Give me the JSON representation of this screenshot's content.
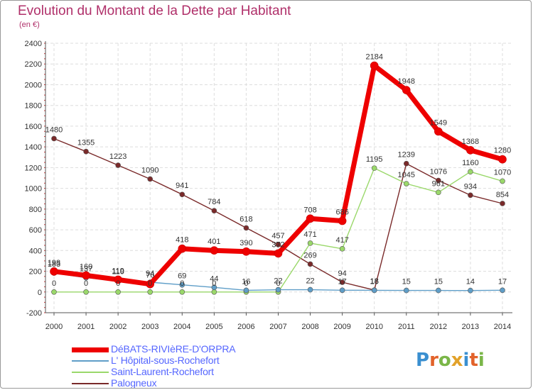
{
  "title": "Evolution du Montant de la Dette par Habitant",
  "subtitle": "(en €)",
  "logo": "Proxiti",
  "chart_data": {
    "type": "line",
    "x": [
      "2000",
      "2001",
      "2002",
      "2003",
      "2004",
      "2005",
      "2006",
      "2007",
      "2008",
      "2009",
      "2010",
      "2011",
      "2012",
      "2013",
      "2014"
    ],
    "ylim": [
      -200,
      2400
    ],
    "yticks": [
      -200,
      0,
      200,
      400,
      600,
      800,
      1000,
      1200,
      1400,
      1600,
      1800,
      2000,
      2200,
      2400
    ],
    "grid": true,
    "legend_position": "bottom-left",
    "series": [
      {
        "name": "DéBATS-RIVIèRE-D'ORPRA",
        "color": "#ee0000",
        "values": [
          198,
          160,
          119,
          76,
          418,
          401,
          390,
          372,
          708,
          686,
          2184,
          1948,
          1549,
          1368,
          1280
        ],
        "labels": [
          "198",
          "160",
          "119",
          "76",
          "418",
          "401",
          "390",
          "372",
          "708",
          "686",
          "2184",
          "1948",
          "1549",
          "1368",
          "1280"
        ]
      },
      {
        "name": "L' Hôpital-sous-Rochefort",
        "color": "#5f9ec8",
        "values": [
          183,
          137,
          110,
          94,
          69,
          44,
          16,
          22,
          22,
          17,
          16,
          15,
          15,
          14,
          17
        ],
        "labels": [
          "183",
          "137",
          "110",
          "94",
          "69",
          "44",
          "16",
          "22",
          "22",
          "17",
          "16",
          "15",
          "15",
          "14",
          "17"
        ]
      },
      {
        "name": "Saint-Laurent-Rochefort",
        "color": "#9ad86a",
        "values": [
          0,
          0,
          0,
          0,
          0,
          0,
          0,
          0,
          471,
          417,
          1195,
          1045,
          961,
          1160,
          1070
        ],
        "labels": [
          "0",
          "0",
          "0",
          "0",
          "0",
          "0",
          "0",
          "0",
          "471",
          "417",
          "1195",
          "1045",
          "961",
          "1160",
          "1070"
        ]
      },
      {
        "name": "Palogneux",
        "color": "#7a2a2a",
        "values": [
          1480,
          1355,
          1223,
          1090,
          941,
          784,
          618,
          457,
          269,
          94,
          18,
          1239,
          1076,
          934,
          854
        ],
        "labels": [
          "1480",
          "1355",
          "1223",
          "1090",
          "941",
          "784",
          "618",
          "457",
          "269",
          "94",
          "18",
          "1239",
          "1076",
          "934",
          "854"
        ]
      }
    ]
  }
}
